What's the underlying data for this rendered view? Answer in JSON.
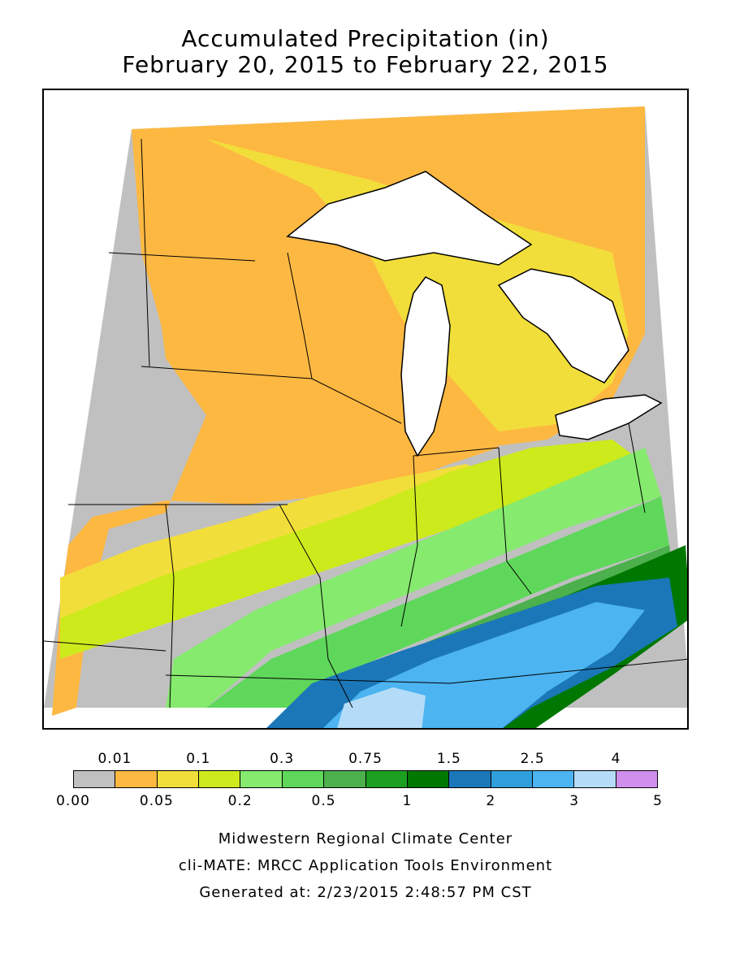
{
  "title": {
    "line1": "Accumulated Precipitation (in)",
    "line2": "February 20, 2015 to February 22, 2015"
  },
  "legend": {
    "colors": [
      "#c0c0c0",
      "#fdb842",
      "#f2de3a",
      "#cdea1c",
      "#85ea6e",
      "#5fd75b",
      "#4cb04d",
      "#1c9f20",
      "#007800",
      "#1b77b8",
      "#319fdb",
      "#4cb4f0",
      "#b4dcf8",
      "#d08fec"
    ],
    "top_labels": [
      "0.01",
      "0.1",
      "0.3",
      "0.75",
      "1.5",
      "2.5",
      "4"
    ],
    "bottom_labels": [
      "0.00",
      "0.05",
      "0.2",
      "0.5",
      "1",
      "2",
      "3",
      "5"
    ]
  },
  "credits": {
    "line1": "Midwestern Regional Climate Center",
    "line2": "cli-MATE: MRCC Application Tools Environment",
    "line3": "Generated at: 2/23/2015 2:48:57 PM CST"
  }
}
